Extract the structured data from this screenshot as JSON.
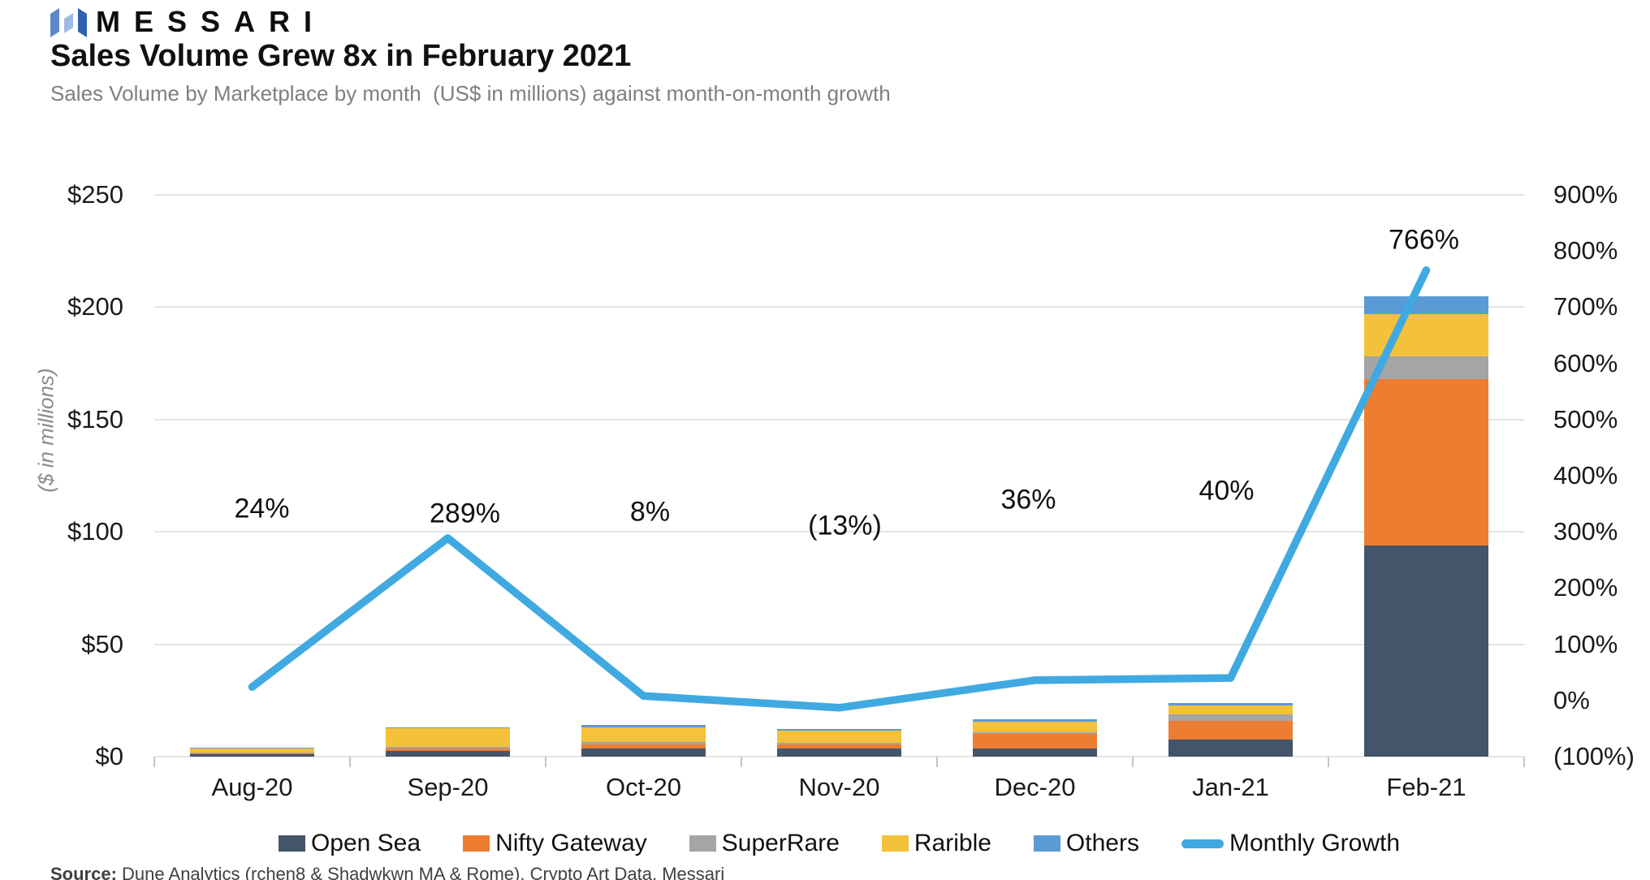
{
  "logo": {
    "brand": "MESSARI"
  },
  "header": {
    "title": "Sales Volume Grew 8x in February 2021",
    "subtitle": "Sales Volume by Marketplace by month  (US$ in millions) against month-on-month growth"
  },
  "chart_data": {
    "type": "combo-stacked-bar-line",
    "categories": [
      "Aug-20",
      "Sep-20",
      "Oct-20",
      "Nov-20",
      "Dec-20",
      "Jan-21",
      "Feb-21"
    ],
    "unit": "US$ in millions",
    "series": [
      {
        "name": "Open Sea",
        "color": "#44546A",
        "values": [
          1.0,
          2.5,
          3.5,
          3.5,
          3.6,
          7.5,
          94
        ]
      },
      {
        "name": "Nifty Gateway",
        "color": "#ED7D31",
        "values": [
          0.3,
          1.0,
          2.0,
          2.0,
          6.5,
          8.5,
          74
        ]
      },
      {
        "name": "SuperRare",
        "color": "#A5A5A5",
        "values": [
          0.4,
          1.0,
          1.0,
          0.8,
          0.8,
          2.9,
          10
        ]
      },
      {
        "name": "Rarible",
        "color": "#F3C13A",
        "values": [
          2.0,
          8.0,
          6.5,
          5.2,
          4.7,
          4.0,
          19
        ]
      },
      {
        "name": "Others",
        "color": "#5B9BD5",
        "values": [
          0.3,
          0.5,
          1.0,
          0.7,
          1.0,
          0.8,
          8
        ]
      }
    ],
    "line": {
      "name": "Monthly Growth",
      "color": "#41A9E1",
      "values": [
        24,
        289,
        8,
        -13,
        36,
        40,
        766
      ],
      "point_labels": [
        "24%",
        "289%",
        "8%",
        "(13%)",
        "36%",
        "40%",
        "766%"
      ]
    },
    "left_axis": {
      "title": "($ in millions)",
      "labels": [
        "$250",
        "$200",
        "$150",
        "$100",
        "$50",
        "$0"
      ],
      "min": 0,
      "max": 250
    },
    "right_axis": {
      "labels": [
        "900%",
        "800%",
        "700%",
        "600%",
        "500%",
        "400%",
        "300%",
        "200%",
        "100%",
        "0%",
        "(100%)"
      ],
      "min": -100,
      "max": 900
    },
    "grid": true,
    "legend_position": "bottom"
  },
  "footer": {
    "source_label": "Source:",
    "source_text": " Dune Analytics (rchen8 & Shadwkwn MA & Rome), Crypto Art Data, Messari"
  }
}
